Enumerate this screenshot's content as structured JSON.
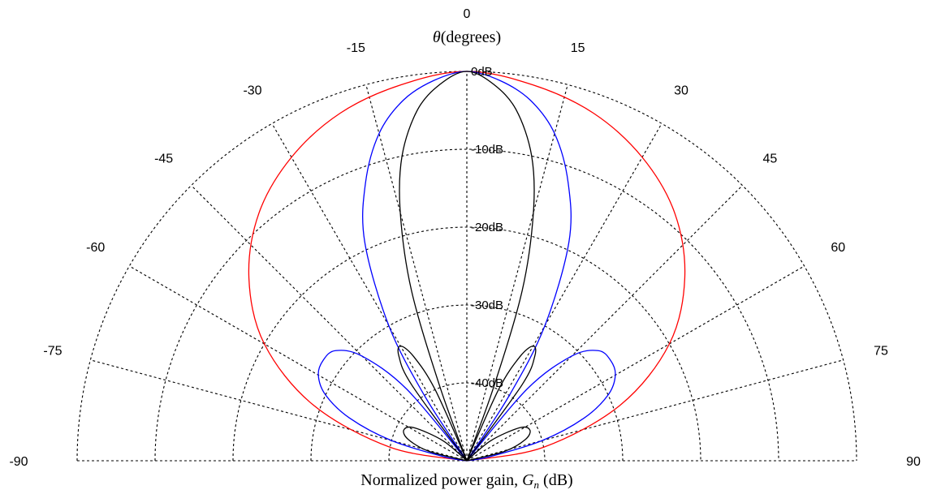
{
  "chart_data": {
    "type": "polar-line",
    "title": "θ(degrees)",
    "title_symbol": "θ",
    "title_rest": "(degrees)",
    "xlabel": "Normalized power gain, Gn (dB)",
    "xlabel_prefix": "Normalized power gain, ",
    "xlabel_symbol": "G",
    "xlabel_subscript": "n",
    "xlabel_suffix": " (dB)",
    "angle_range": [
      -90,
      90
    ],
    "angle_ticks": [
      -90,
      -75,
      -60,
      -45,
      -30,
      -15,
      0,
      15,
      30,
      45,
      60,
      75,
      90
    ],
    "angle_tick_labels": [
      "-90",
      "-75",
      "-60",
      "-45",
      "-30",
      "-15",
      "0",
      "15",
      "30",
      "45",
      "60",
      "75",
      "90"
    ],
    "radial_range_db": [
      -50,
      0
    ],
    "radial_ticks_db": [
      0,
      -10,
      -20,
      -30,
      -40
    ],
    "radial_tick_labels": [
      "0dB",
      "-10dB",
      "-20dB",
      "-30dB",
      "-40dB"
    ],
    "grid": true,
    "series_colors": [
      "#ff0000",
      "#0000ff",
      "#000000"
    ],
    "series": [
      {
        "color": "#ff0000",
        "main_lobe": [
          [
            0,
            0
          ],
          [
            10,
            -1
          ],
          [
            20,
            -2.5
          ],
          [
            30,
            -5
          ],
          [
            40,
            -8.5
          ],
          [
            50,
            -13.5
          ],
          [
            60,
            -20
          ],
          [
            70,
            -29
          ],
          [
            80,
            -40
          ],
          [
            88,
            -50
          ]
        ],
        "side_lobes": []
      },
      {
        "color": "#0000ff",
        "main_lobe": [
          [
            0,
            0
          ],
          [
            5,
            -1
          ],
          [
            10,
            -3
          ],
          [
            15,
            -6.5
          ],
          [
            20,
            -12
          ],
          [
            25,
            -19
          ],
          [
            30,
            -30
          ],
          [
            33,
            -40
          ],
          [
            35,
            -50
          ]
        ],
        "side_lobes": [
          [
            [
              35,
              -50
            ],
            [
              40,
              -38
            ],
            [
              45,
              -31
            ],
            [
              50,
              -28
            ],
            [
              55,
              -27.5
            ],
            [
              60,
              -28
            ],
            [
              65,
              -30
            ],
            [
              70,
              -34
            ],
            [
              75,
              -40
            ],
            [
              80,
              -47
            ],
            [
              82,
              -50
            ]
          ]
        ]
      },
      {
        "color": "#000000",
        "main_lobe": [
          [
            0,
            0
          ],
          [
            4,
            -1.5
          ],
          [
            8,
            -4.5
          ],
          [
            12,
            -10
          ],
          [
            15,
            -17
          ],
          [
            18,
            -27
          ],
          [
            20,
            -40
          ],
          [
            21,
            -50
          ]
        ],
        "side_lobes": [
          [
            [
              21,
              -50
            ],
            [
              24,
              -40
            ],
            [
              27,
              -35
            ],
            [
              30,
              -33
            ],
            [
              33,
              -34
            ],
            [
              36,
              -38
            ],
            [
              40,
              -50
            ]
          ],
          [
            [
              40,
              -50
            ],
            [
              50,
              -46
            ],
            [
              58,
              -42
            ],
            [
              64,
              -41
            ],
            [
              70,
              -42
            ],
            [
              76,
              -45
            ],
            [
              80,
              -50
            ]
          ]
        ]
      }
    ]
  }
}
